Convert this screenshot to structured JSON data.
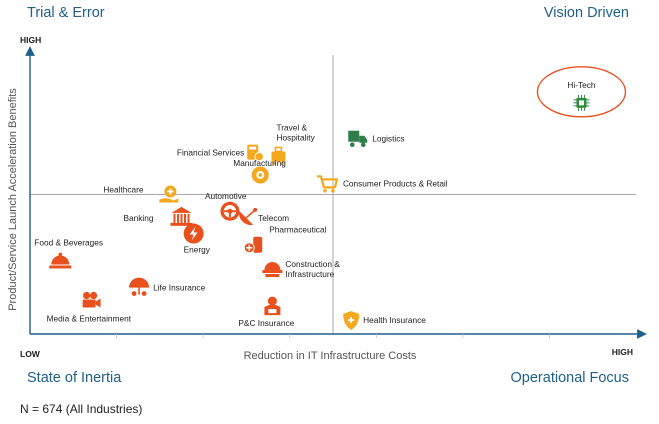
{
  "chart_data": {
    "type": "scatter",
    "title": "",
    "xlabel": "Reduction in IT Infrastructure Costs",
    "ylabel": "Product/Service Launch Acceleration Benefits",
    "x_low_label": "LOW",
    "x_high_label": "HIGH",
    "y_high_label": "HIGH",
    "xlim": [
      0,
      100
    ],
    "ylim": [
      0,
      100
    ],
    "quadrant_lines": {
      "x": 50,
      "y": 50
    },
    "quadrants": {
      "top_left": "Trial & Error",
      "top_right": "Vision Driven",
      "bottom_left": "State of Inertia",
      "bottom_right": "Operational Focus"
    },
    "highlight": "Hi-Tech",
    "points": [
      {
        "label": [
          "Hi-Tech"
        ],
        "x": 91,
        "y": 85,
        "icon": "chip-icon",
        "color": "#2e8b3e"
      },
      {
        "label": [
          "Travel &",
          "Hospitality"
        ],
        "x": 41,
        "y": 64,
        "icon": "luggage-icon",
        "color": "#f4a81d"
      },
      {
        "label": [
          "Financial Services"
        ],
        "x": 37,
        "y": 65,
        "icon": "calculator-icon",
        "color": "#f4a81d"
      },
      {
        "label": [
          "Logistics"
        ],
        "x": 54,
        "y": 70,
        "icon": "truck-icon",
        "color": "#2e7d4a"
      },
      {
        "label": [
          "Manufacturing"
        ],
        "x": 38,
        "y": 57,
        "icon": "gear-icon",
        "color": "#f4a81d"
      },
      {
        "label": [
          "Consumer Products & Retail"
        ],
        "x": 49,
        "y": 54,
        "icon": "cart-icon",
        "color": "#f4a81d"
      },
      {
        "label": [
          "Healthcare"
        ],
        "x": 23,
        "y": 50,
        "icon": "health-hand-icon",
        "color": "#f4a81d"
      },
      {
        "label": [
          "Automotive"
        ],
        "x": 33,
        "y": 44,
        "icon": "steering-icon",
        "color": "#e8501e"
      },
      {
        "label": [
          "Banking"
        ],
        "x": 25,
        "y": 42,
        "icon": "bank-icon",
        "color": "#e8501e"
      },
      {
        "label": [
          "Telecom"
        ],
        "x": 36,
        "y": 42,
        "icon": "satellite-icon",
        "color": "#e8501e"
      },
      {
        "label": [
          "Energy"
        ],
        "x": 27,
        "y": 36,
        "icon": "energy-icon",
        "color": "#e8501e"
      },
      {
        "label": [
          "Pharmaceutical"
        ],
        "x": 37,
        "y": 32,
        "icon": "pharma-icon",
        "color": "#e8501e"
      },
      {
        "label": [
          "Construction &",
          "Infrastructure"
        ],
        "x": 40,
        "y": 24,
        "icon": "helmet-icon",
        "color": "#e8501e"
      },
      {
        "label": [
          "Food & Beverages"
        ],
        "x": 5,
        "y": 26,
        "icon": "food-icon",
        "color": "#e8501e"
      },
      {
        "label": [
          "Life Insurance"
        ],
        "x": 18,
        "y": 17,
        "icon": "umbrella-icon",
        "color": "#e8501e"
      },
      {
        "label": [
          "Media & Entertainment"
        ],
        "x": 10,
        "y": 12,
        "icon": "camera-icon",
        "color": "#e8501e"
      },
      {
        "label": [
          "P&C Insurance"
        ],
        "x": 40,
        "y": 10,
        "icon": "agent-icon",
        "color": "#e8501e"
      },
      {
        "label": [
          "Health Insurance"
        ],
        "x": 53,
        "y": 5,
        "icon": "shield-icon",
        "color": "#f4a81d"
      }
    ]
  },
  "footnote": "N = 674 (All Industries)",
  "colors": {
    "quadrant_text": "#1f5f8b",
    "axis": "#1f5f8b",
    "grid": "#a8a8a8",
    "highlight_ring": "#e8501e"
  }
}
